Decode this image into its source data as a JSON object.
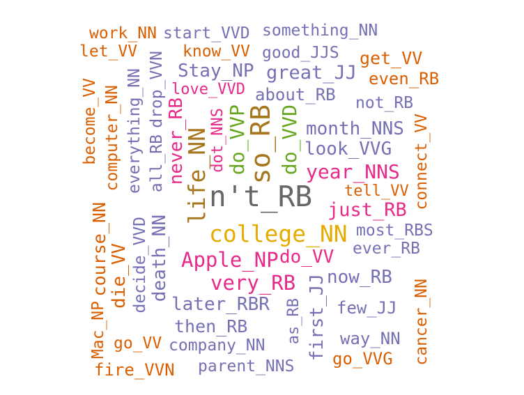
{
  "colors": {
    "orange": "#d95f02",
    "purple": "#7570b3",
    "magenta": "#e7298a",
    "green": "#66a61e",
    "gold": "#e6ab02",
    "brown": "#a6761d",
    "gray": "#666666"
  },
  "words": [
    {
      "text": "work_NN",
      "color": "orange"
    },
    {
      "text": "start_VVD",
      "color": "purple"
    },
    {
      "text": "something_NN",
      "color": "purple"
    },
    {
      "text": "let_VV",
      "color": "orange"
    },
    {
      "text": "know_VV",
      "color": "orange"
    },
    {
      "text": "good_JJS",
      "color": "purple"
    },
    {
      "text": "get_VV",
      "color": "orange"
    },
    {
      "text": "Stay_NP",
      "color": "purple"
    },
    {
      "text": "great_JJ",
      "color": "purple"
    },
    {
      "text": "even_RB",
      "color": "orange"
    },
    {
      "text": "love_VVD",
      "color": "magenta"
    },
    {
      "text": "about_RB",
      "color": "purple"
    },
    {
      "text": "not_RB",
      "color": "purple"
    },
    {
      "text": "month_NNS",
      "color": "purple"
    },
    {
      "text": "look_VVG",
      "color": "purple"
    },
    {
      "text": "year_NNS",
      "color": "magenta"
    },
    {
      "text": "tell_VV",
      "color": "orange"
    },
    {
      "text": "n't_RB",
      "color": "gray"
    },
    {
      "text": "just_RB",
      "color": "magenta"
    },
    {
      "text": "college_NN",
      "color": "gold"
    },
    {
      "text": "most_RBS",
      "color": "purple"
    },
    {
      "text": "ever_RB",
      "color": "purple"
    },
    {
      "text": "Apple_NP",
      "color": "magenta"
    },
    {
      "text": "do_VV",
      "color": "magenta"
    },
    {
      "text": "very_RB",
      "color": "magenta"
    },
    {
      "text": "now_RB",
      "color": "purple"
    },
    {
      "text": "later_RBR",
      "color": "purple"
    },
    {
      "text": "few_JJ",
      "color": "purple"
    },
    {
      "text": "then_RB",
      "color": "purple"
    },
    {
      "text": "go_VV",
      "color": "orange"
    },
    {
      "text": "company_NN",
      "color": "purple"
    },
    {
      "text": "way_NN",
      "color": "purple"
    },
    {
      "text": "go_VVG",
      "color": "orange"
    },
    {
      "text": "fire_VVN",
      "color": "orange"
    },
    {
      "text": "parent_NNS",
      "color": "purple"
    },
    {
      "text": "become_VV",
      "color": "orange"
    },
    {
      "text": "computer_NN",
      "color": "orange"
    },
    {
      "text": "everything_NN",
      "color": "purple"
    },
    {
      "text": "drop_VVN",
      "color": "purple"
    },
    {
      "text": "all_RB",
      "color": "purple"
    },
    {
      "text": "never_RB",
      "color": "magenta"
    },
    {
      "text": "life_NN",
      "color": "brown"
    },
    {
      "text": "dot_NNS",
      "color": "magenta"
    },
    {
      "text": "do_VVP",
      "color": "green"
    },
    {
      "text": "so_RB",
      "color": "brown"
    },
    {
      "text": "do_VVD",
      "color": "green"
    },
    {
      "text": "connect_VV",
      "color": "orange"
    },
    {
      "text": "Mac_NP",
      "color": "orange"
    },
    {
      "text": "course_NN",
      "color": "orange"
    },
    {
      "text": "die_VV",
      "color": "orange"
    },
    {
      "text": "decide_VVD",
      "color": "purple"
    },
    {
      "text": "death_NN",
      "color": "purple"
    },
    {
      "text": "as_RB",
      "color": "purple"
    },
    {
      "text": "first_JJ",
      "color": "purple"
    },
    {
      "text": "cancer_NN",
      "color": "orange"
    }
  ]
}
